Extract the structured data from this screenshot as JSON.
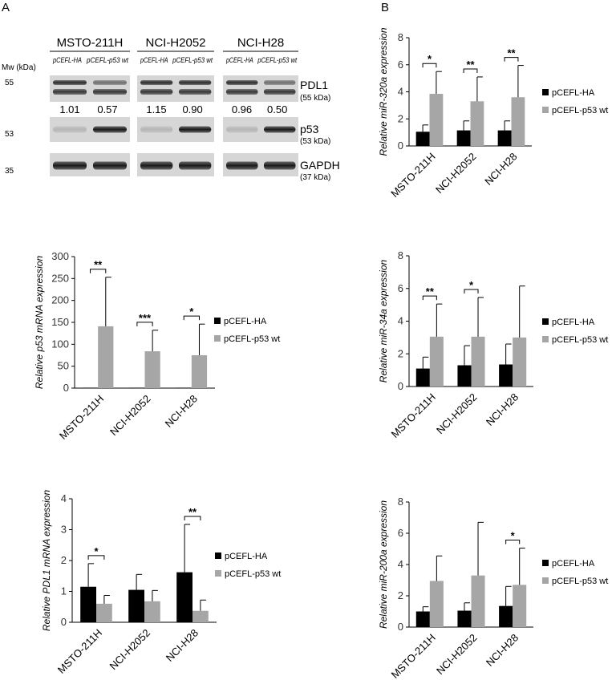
{
  "figure": {
    "panel_labels": [
      "A",
      "B"
    ],
    "western_blot": {
      "mw_label": "Mw (kDa)",
      "cell_lines": [
        "MSTO-211H",
        "NCI-H2052",
        "NCI-H28"
      ],
      "lane_labels": [
        "pCEFL-HA",
        "pCEFL-p53 wt"
      ],
      "markers": [
        "55",
        "53",
        "35"
      ],
      "proteins": [
        {
          "name": "PDL1",
          "size": "(55 kDa)"
        },
        {
          "name": "p53",
          "size": "(53 kDa)"
        },
        {
          "name": "GAPDH",
          "size": "(37 kDa)"
        }
      ],
      "densitometry": [
        [
          "1.01",
          "0.57"
        ],
        [
          "1.15",
          "0.90"
        ],
        [
          "0.96",
          "0.50"
        ]
      ]
    }
  },
  "chart_data": [
    {
      "id": "p53_mrna",
      "type": "bar",
      "categories": [
        "MSTO-211H",
        "NCI-H2052",
        "NCI-H28"
      ],
      "series": [
        {
          "name": "pCEFL-HA",
          "color": "#000000",
          "values": [
            1,
            1,
            1
          ],
          "errors": [
            0,
            0,
            0
          ]
        },
        {
          "name": "pCEFL-p53 wt",
          "color": "#a6a6a6",
          "values": [
            141,
            84,
            75
          ],
          "errors": [
            112,
            48,
            71
          ]
        }
      ],
      "ylabel": "Relative p53 mRNA expression",
      "ylim": [
        0,
        300
      ],
      "yticks": [
        "0",
        "50",
        "100",
        "150",
        "200",
        "250",
        "300"
      ],
      "significance": [
        "**",
        "***",
        "*"
      ],
      "legend": "right"
    },
    {
      "id": "pdl1_mrna",
      "type": "bar",
      "categories": [
        "MSTO-211H",
        "NCI-H2052",
        "NCI-H28"
      ],
      "series": [
        {
          "name": "pCEFL-HA",
          "color": "#000000",
          "values": [
            1.15,
            1.05,
            1.62
          ],
          "errors": [
            0.75,
            0.5,
            1.55
          ]
        },
        {
          "name": "pCEFL-p53 wt",
          "color": "#a6a6a6",
          "values": [
            0.6,
            0.68,
            0.37
          ],
          "errors": [
            0.27,
            0.35,
            0.35
          ]
        }
      ],
      "ylabel": "Relative PDL1 mRNA expression",
      "ylim": [
        0,
        4
      ],
      "yticks": [
        "0",
        "1",
        "2",
        "3",
        "4"
      ],
      "significance": [
        "*",
        "",
        "**"
      ],
      "legend": "right"
    },
    {
      "id": "mir320a",
      "type": "bar",
      "categories": [
        "MSTO-211H",
        "NCI-H2052",
        "NCI-H28"
      ],
      "series": [
        {
          "name": "pCEFL-HA",
          "color": "#000000",
          "values": [
            1.05,
            1.15,
            1.15
          ],
          "errors": [
            0.5,
            0.7,
            0.7
          ]
        },
        {
          "name": "pCEFL-p53 wt",
          "color": "#a6a6a6",
          "values": [
            3.85,
            3.3,
            3.6
          ],
          "errors": [
            1.65,
            1.8,
            2.35
          ]
        }
      ],
      "ylabel": "Relative miR-320a expression",
      "ylim": [
        0,
        8
      ],
      "yticks": [
        "0",
        "2",
        "4",
        "6",
        "8"
      ],
      "significance": [
        "*",
        "**",
        "**"
      ],
      "legend": "right"
    },
    {
      "id": "mir34a",
      "type": "bar",
      "categories": [
        "MSTO-211H",
        "NCI-H2052",
        "NCI-H28"
      ],
      "series": [
        {
          "name": "pCEFL-HA",
          "color": "#000000",
          "values": [
            1.1,
            1.3,
            1.35
          ],
          "errors": [
            0.7,
            1.2,
            1.25
          ]
        },
        {
          "name": "pCEFL-p53 wt",
          "color": "#a6a6a6",
          "values": [
            3.05,
            3.05,
            3.0
          ],
          "errors": [
            2.0,
            2.4,
            3.15
          ]
        }
      ],
      "ylabel": "Relative miR-34a expression",
      "ylim": [
        0,
        8
      ],
      "yticks": [
        "0",
        "2",
        "4",
        "6",
        "8"
      ],
      "significance": [
        "**",
        "*",
        ""
      ],
      "legend": "right"
    },
    {
      "id": "mir200a",
      "type": "bar",
      "categories": [
        "MSTO-211H",
        "NCI-H2052",
        "NCI-H28"
      ],
      "series": [
        {
          "name": "pCEFL-HA",
          "color": "#000000",
          "values": [
            1.0,
            1.05,
            1.35
          ],
          "errors": [
            0.3,
            0.5,
            1.25
          ]
        },
        {
          "name": "pCEFL-p53 wt",
          "color": "#a6a6a6",
          "values": [
            2.95,
            3.3,
            2.7
          ],
          "errors": [
            1.6,
            3.4,
            2.35
          ]
        }
      ],
      "ylabel": "Relative miR-200a expression",
      "ylim": [
        0,
        8
      ],
      "yticks": [
        "0",
        "2",
        "4",
        "6",
        "8"
      ],
      "significance": [
        "",
        "",
        "*"
      ],
      "legend": "right"
    }
  ]
}
